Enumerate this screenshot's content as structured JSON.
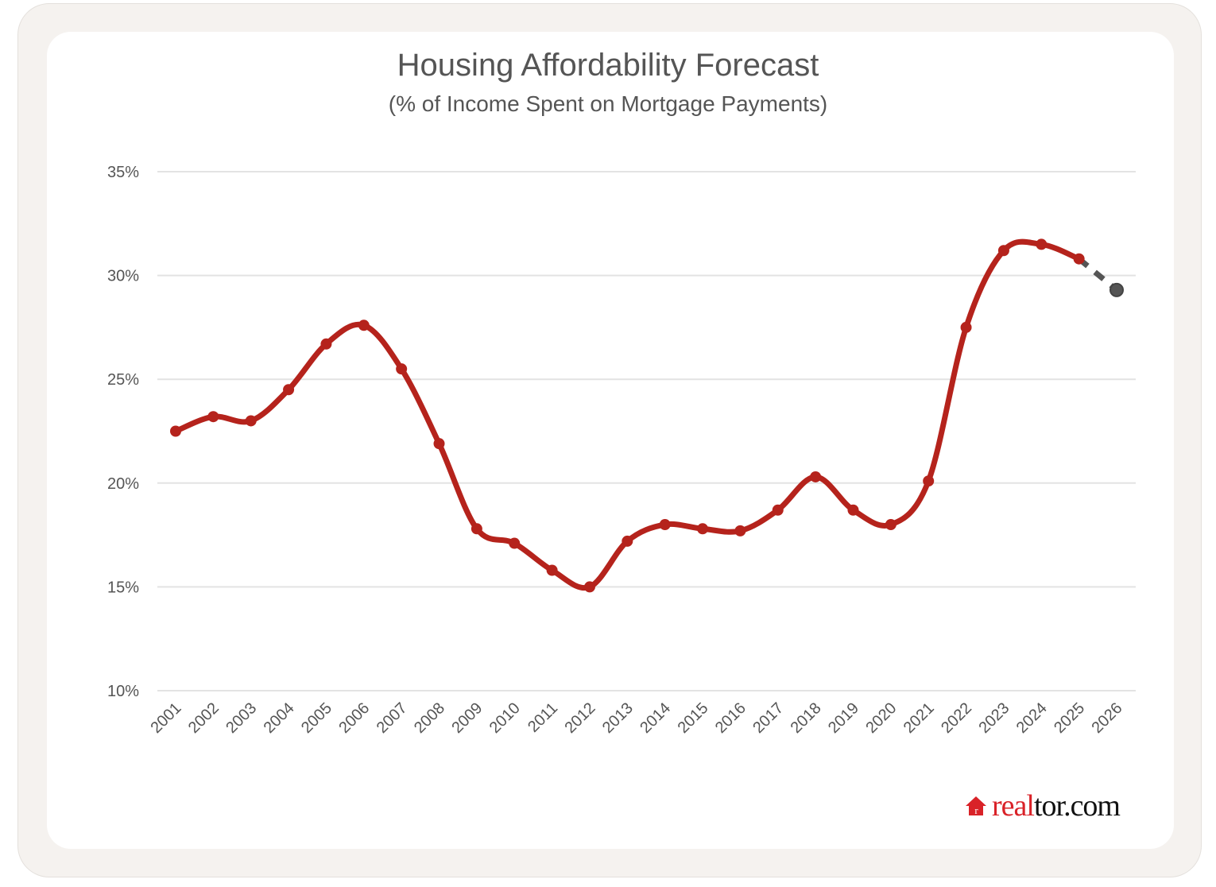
{
  "chart_data": {
    "type": "line",
    "title": "Housing Affordability Forecast",
    "subtitle": "(% of Income Spent on Mortgage Payments)",
    "xlabel": "",
    "ylabel": "",
    "ylim": [
      10,
      35
    ],
    "yticks": [
      "35%",
      "30%",
      "25%",
      "20%",
      "15%",
      "10%"
    ],
    "ytick_values": [
      35,
      30,
      25,
      20,
      15,
      10
    ],
    "categories": [
      "2001",
      "2002",
      "2003",
      "2004",
      "2005",
      "2006",
      "2007",
      "2008",
      "2009",
      "2010",
      "2011",
      "2012",
      "2013",
      "2014",
      "2015",
      "2016",
      "2017",
      "2018",
      "2019",
      "2020",
      "2021",
      "2022",
      "2023",
      "2024",
      "2025",
      "2026"
    ],
    "values": [
      22.5,
      23.2,
      23.0,
      24.5,
      26.7,
      27.6,
      25.5,
      21.9,
      17.8,
      17.1,
      15.8,
      15.0,
      17.2,
      18.0,
      17.8,
      17.7,
      18.7,
      20.3,
      18.7,
      18.0,
      20.1,
      27.5,
      31.2,
      31.5,
      30.8,
      29.3
    ],
    "forecast_from": "2025",
    "grid": true,
    "smooth": true,
    "colors": {
      "actual": "#b5231c",
      "forecast": "#555555",
      "grid": "#e3e3e3"
    }
  },
  "logo": {
    "text_red": "real",
    "text_black": "tor.com"
  }
}
